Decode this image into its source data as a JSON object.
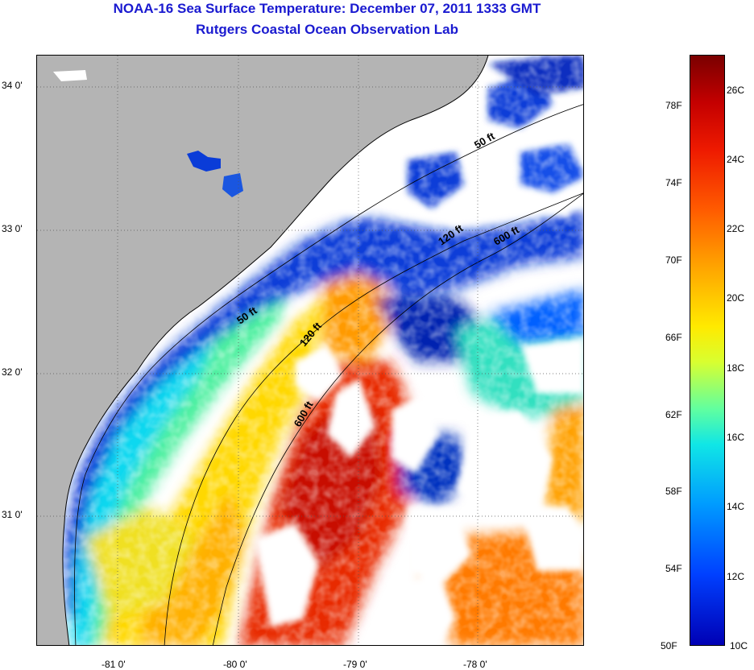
{
  "header": {
    "title": "NOAA-16 Sea Surface Temperature:  December 07, 2011 1333 GMT",
    "subtitle": "Rutgers Coastal Ocean Observation Lab"
  },
  "map": {
    "lat_labels": [
      "34 0'",
      "33 0'",
      "32 0'",
      "31 0'"
    ],
    "lon_labels": [
      "-81 0'",
      "-80 0'",
      "-79 0'",
      "-78 0'"
    ],
    "lon_range": [
      -81.67,
      -77.22
    ],
    "lat_range": [
      30.1,
      34.22
    ],
    "land_color": "#b4b4b4",
    "cloud_color": "#ffffff",
    "isobath_labels": [
      "50 ft",
      "120 ft",
      "600 ft",
      "50 ft",
      "120 ft",
      "600 ft"
    ]
  },
  "colorbar": {
    "fahrenheit": [
      "78F",
      "74F",
      "70F",
      "66F",
      "62F",
      "58F",
      "54F",
      "50F"
    ],
    "celsius": [
      "26C",
      "24C",
      "22C",
      "20C",
      "18C",
      "16C",
      "14C",
      "12C",
      "10C"
    ],
    "range_c": [
      10,
      27.2
    ]
  }
}
